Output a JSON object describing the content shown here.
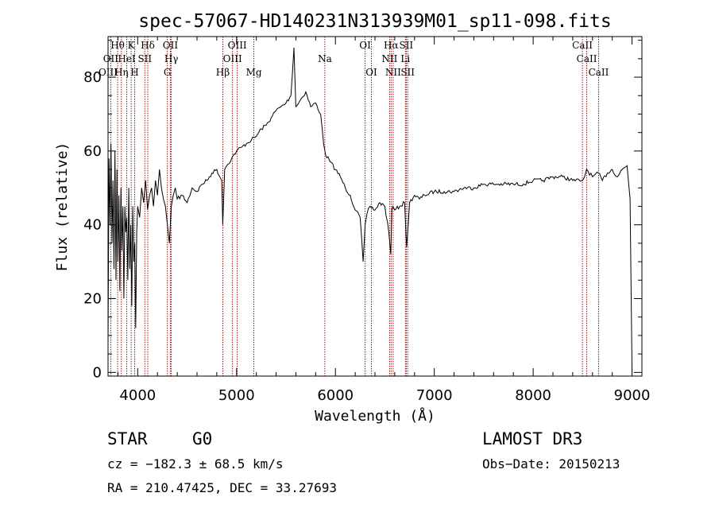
{
  "chart_data": {
    "type": "line",
    "title": "spec-57067-HD140231N313939M01_sp11-098.fits",
    "xlabel": "Wavelength (Å)",
    "ylabel": "Flux (relative)",
    "xlim": [
      3700,
      9100
    ],
    "ylim": [
      -1,
      91
    ],
    "x_ticks": [
      4000,
      5000,
      6000,
      7000,
      8000,
      9000
    ],
    "y_ticks": [
      0,
      20,
      40,
      60,
      80
    ],
    "grid": false,
    "line_color": "#000000",
    "marker_color": "#8b0000",
    "series": [
      {
        "x": [
          3700,
          3710,
          3720,
          3730,
          3740,
          3750,
          3760,
          3770,
          3780,
          3790,
          3800,
          3810,
          3820,
          3830,
          3840,
          3850,
          3860,
          3870,
          3880,
          3890,
          3900,
          3910,
          3920,
          3930,
          3940,
          3950,
          3960,
          3970,
          3980,
          3990,
          4000,
          4020,
          4040,
          4060,
          4080,
          4100,
          4120,
          4140,
          4160,
          4180,
          4200,
          4220,
          4240,
          4260,
          4280,
          4300,
          4320,
          4340,
          4360,
          4380,
          4400,
          4450,
          4500,
          4550,
          4600,
          4650,
          4700,
          4750,
          4800,
          4850,
          4860,
          4880,
          4900,
          4950,
          5000,
          5050,
          5100,
          5150,
          5200,
          5250,
          5300,
          5350,
          5400,
          5450,
          5500,
          5550,
          5580,
          5600,
          5650,
          5700,
          5750,
          5800,
          5850,
          5880,
          5900,
          5950,
          6000,
          6050,
          6100,
          6150,
          6200,
          6250,
          6280,
          6300,
          6320,
          6350,
          6400,
          6450,
          6500,
          6540,
          6560,
          6570,
          6580,
          6600,
          6650,
          6700,
          6720,
          6750,
          6800,
          6850,
          6900,
          7000,
          7100,
          7200,
          7300,
          7400,
          7500,
          7600,
          7700,
          7800,
          7900,
          8000,
          8100,
          8200,
          8300,
          8400,
          8500,
          8520,
          8540,
          8600,
          8660,
          8700,
          8750,
          8800,
          8850,
          8900,
          8950,
          8980,
          9000
        ],
        "y": [
          8,
          58,
          40,
          62,
          35,
          52,
          28,
          60,
          25,
          55,
          30,
          48,
          22,
          50,
          33,
          45,
          20,
          45,
          38,
          42,
          25,
          50,
          28,
          40,
          18,
          45,
          30,
          35,
          12,
          38,
          45,
          42,
          50,
          46,
          52,
          44,
          48,
          50,
          45,
          52,
          48,
          55,
          50,
          47,
          45,
          40,
          35,
          45,
          48,
          50,
          47,
          48,
          46,
          50,
          49,
          51,
          52,
          54,
          55,
          52,
          40,
          55,
          56,
          58,
          60,
          61,
          62,
          63,
          64,
          66,
          67,
          69,
          71,
          72,
          73,
          75,
          88,
          72,
          74,
          76,
          72,
          73,
          70,
          62,
          59,
          57,
          55,
          53,
          50,
          48,
          44,
          42,
          30,
          40,
          43,
          45,
          44,
          46,
          45,
          38,
          32,
          44,
          45,
          44,
          45,
          46,
          34,
          46,
          48,
          47,
          48,
          49,
          49,
          49,
          50,
          50,
          51,
          51,
          51,
          51,
          51,
          52,
          52,
          53,
          53,
          52,
          52,
          53,
          55,
          53,
          54,
          52,
          54,
          55,
          53,
          55,
          56,
          47,
          0
        ]
      }
    ],
    "annotation_lines": [
      {
        "name": "Hθ",
        "x": 3797,
        "row": 0
      },
      {
        "name": "K",
        "x": 3934,
        "row": 0
      },
      {
        "name": "Hδ",
        "x": 4102,
        "row": 0
      },
      {
        "name": "OII",
        "x": 4330,
        "row": 0
      },
      {
        "name": "OIII",
        "x": 5007,
        "row": 0
      },
      {
        "name": "OI",
        "x": 6300,
        "row": 0
      },
      {
        "name": "Hα",
        "x": 6563,
        "row": 0
      },
      {
        "name": "SII",
        "x": 6716,
        "row": 0
      },
      {
        "name": "CaII",
        "x": 8498,
        "row": 0
      },
      {
        "name": "OII",
        "x": 3727,
        "row": 1
      },
      {
        "name": "HeI",
        "x": 3889,
        "row": 1
      },
      {
        "name": "SII",
        "x": 4072,
        "row": 1
      },
      {
        "name": "Hγ",
        "x": 4340,
        "row": 1
      },
      {
        "name": "OIII",
        "x": 4959,
        "row": 1
      },
      {
        "name": "Na",
        "x": 5893,
        "row": 1
      },
      {
        "name": "NII",
        "x": 6548,
        "row": 1
      },
      {
        "name": "Li",
        "x": 6708,
        "row": 1
      },
      {
        "name": "CaII",
        "x": 8542,
        "row": 1
      },
      {
        "name": "OIII",
        "x": 3700,
        "row": 2
      },
      {
        "name": "Hη",
        "x": 3835,
        "row": 2
      },
      {
        "name": "H",
        "x": 3969,
        "row": 2
      },
      {
        "name": "G",
        "x": 4300,
        "row": 2
      },
      {
        "name": "Hβ",
        "x": 4861,
        "row": 2
      },
      {
        "name": "Mg",
        "x": 5175,
        "row": 2
      },
      {
        "name": "OI",
        "x": 6364,
        "row": 2
      },
      {
        "name": "NII",
        "x": 6584,
        "row": 2
      },
      {
        "name": "SII",
        "x": 6731,
        "row": 2
      },
      {
        "name": "CaII",
        "x": 8662,
        "row": 2
      }
    ]
  },
  "info": {
    "class": "STAR",
    "subclass": "G0",
    "survey": "LAMOST DR3",
    "cz": "cz = −182.3 ± 68.5 km/s",
    "obs_date": "Obs−Date: 20150213",
    "coords": "RA = 210.47425, DEC =  33.27693"
  }
}
